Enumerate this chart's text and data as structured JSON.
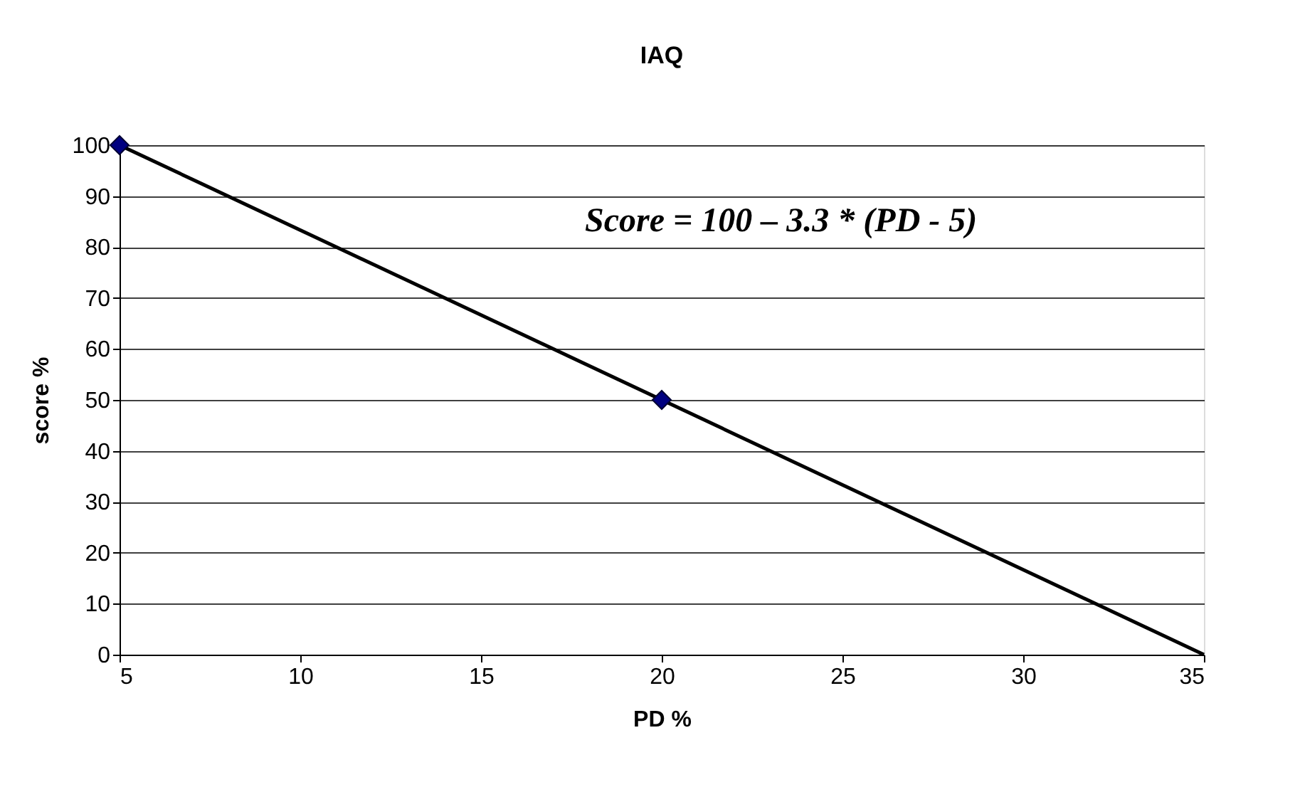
{
  "chart_data": {
    "type": "line",
    "title": "IAQ",
    "xlabel": "PD %",
    "ylabel": "score %",
    "xlim": [
      5,
      35
    ],
    "xticks": [
      5,
      10,
      15,
      20,
      25,
      30,
      35
    ],
    "ylim": [
      0,
      100
    ],
    "yticks": [
      0,
      10,
      20,
      30,
      40,
      50,
      60,
      70,
      80,
      90,
      100
    ],
    "grid": "y",
    "annotations": [
      "Score = 100 – 3.3 * (PD - 5)"
    ],
    "series": [
      {
        "color": "#000000",
        "x": [
          5,
          35
        ],
        "values": [
          100,
          0
        ],
        "line_style": "solid"
      },
      {
        "type": "scatter",
        "color": "#000080",
        "x": [
          5,
          20
        ],
        "values": [
          100,
          50
        ],
        "marker": "diamond"
      }
    ]
  }
}
